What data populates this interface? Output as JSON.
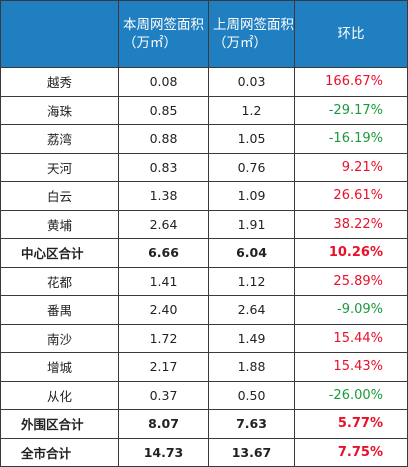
{
  "headers": {
    "col1": "",
    "col2": "本周网签面积（万㎡）",
    "col3": "上周网签面积（万㎡）",
    "col4": "环比"
  },
  "rows": [
    {
      "name": "越秀",
      "this_week": "0.08",
      "last_week": "0.03",
      "ratio": "166.67%",
      "trend": "up"
    },
    {
      "name": "海珠",
      "this_week": "0.85",
      "last_week": "1.2",
      "ratio": "-29.17%",
      "trend": "down"
    },
    {
      "name": "荔湾",
      "this_week": "0.88",
      "last_week": "1.05",
      "ratio": "-16.19%",
      "trend": "down"
    },
    {
      "name": "天河",
      "this_week": "0.83",
      "last_week": "0.76",
      "ratio": "9.21%",
      "trend": "up"
    },
    {
      "name": "白云",
      "this_week": "1.38",
      "last_week": "1.09",
      "ratio": "26.61%",
      "trend": "up"
    },
    {
      "name": "黄埔",
      "this_week": "2.64",
      "last_week": "1.91",
      "ratio": "38.22%",
      "trend": "up"
    },
    {
      "name": "中心区合计",
      "this_week": "6.66",
      "last_week": "6.04",
      "ratio": "10.26%",
      "trend": "up",
      "subtotal": true
    },
    {
      "name": "花都",
      "this_week": "1.41",
      "last_week": "1.12",
      "ratio": "25.89%",
      "trend": "up"
    },
    {
      "name": "番禺",
      "this_week": "2.40",
      "last_week": "2.64",
      "ratio": "-9.09%",
      "trend": "down"
    },
    {
      "name": "南沙",
      "this_week": "1.72",
      "last_week": "1.49",
      "ratio": "15.44%",
      "trend": "up"
    },
    {
      "name": "增城",
      "this_week": "2.17",
      "last_week": "1.88",
      "ratio": "15.43%",
      "trend": "up"
    },
    {
      "name": "从化",
      "this_week": "0.37",
      "last_week": "0.50",
      "ratio": "-26.00%",
      "trend": "down"
    },
    {
      "name": "外围区合计",
      "this_week": "8.07",
      "last_week": "7.63",
      "ratio": "5.77%",
      "trend": "up",
      "subtotal": true
    },
    {
      "name": "全市合计",
      "this_week": "14.73",
      "last_week": "13.67",
      "ratio": "7.75%",
      "trend": "up",
      "subtotal": true
    }
  ],
  "colors": {
    "header_bg": "#1f7fc1",
    "header_text": "#ffffff",
    "positive": "#e8102a",
    "negative": "#1a9a3c",
    "border": "#3a3a3a"
  }
}
